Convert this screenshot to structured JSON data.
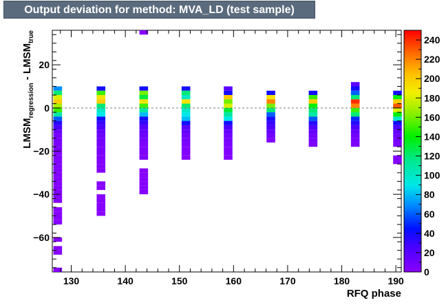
{
  "title": "Output deviation for method: MVA_LD (test sample)",
  "chart_data": {
    "type": "heatmap",
    "title": "Output deviation for method: MVA_LD (test sample)",
    "xlabel": "RFQ phase",
    "ylabel": {
      "main": "LMSM",
      "sub1": "regression",
      "mid": " - LMSM",
      "sub2": "true"
    },
    "xlim": [
      126.5,
      191
    ],
    "ylim": [
      -76,
      36
    ],
    "zlim": [
      0,
      250
    ],
    "x_ticks": [
      130,
      140,
      150,
      160,
      170,
      180,
      190
    ],
    "x_tick_labels": [
      "130",
      "140",
      "150",
      "160",
      "170",
      "180",
      "190"
    ],
    "y_ticks": [
      -60,
      -40,
      -20,
      0,
      20
    ],
    "y_tick_labels": [
      "−60",
      "−40",
      "−20",
      "0",
      "20"
    ],
    "z_ticks": [
      0,
      20,
      40,
      60,
      80,
      100,
      120,
      140,
      160,
      180,
      200,
      220,
      240
    ],
    "z_tick_labels": [
      "0",
      "20",
      "40",
      "60",
      "80",
      "100",
      "120",
      "140",
      "160",
      "180",
      "200",
      "220",
      "240"
    ],
    "bin_width_x": 1.6,
    "bin_height_y": 2,
    "reference_line_y": 0,
    "columns": [
      {
        "x": 127.5,
        "cells": [
          [
            9,
            70
          ],
          [
            7,
            120
          ],
          [
            5,
            180
          ],
          [
            3,
            200
          ],
          [
            1,
            170
          ],
          [
            -1,
            150
          ],
          [
            -3,
            110
          ],
          [
            -5,
            60
          ],
          [
            -7,
            35
          ],
          [
            -9,
            25
          ],
          [
            -11,
            12
          ],
          [
            -13,
            8
          ],
          [
            -15,
            8
          ],
          [
            -17,
            6
          ],
          [
            -19,
            5
          ],
          [
            -21,
            4
          ],
          [
            -23,
            4
          ],
          [
            -25,
            4
          ],
          [
            -27,
            3
          ],
          [
            -29,
            3
          ],
          [
            -31,
            3
          ],
          [
            -33,
            3
          ],
          [
            -35,
            2
          ],
          [
            -37,
            2
          ],
          [
            -39,
            2
          ],
          [
            -41,
            2
          ],
          [
            -43,
            2
          ],
          [
            -47,
            1
          ],
          [
            -49,
            1
          ],
          [
            -51,
            1
          ],
          [
            -53,
            1
          ],
          [
            -61,
            1
          ],
          [
            -65,
            1
          ],
          [
            -67,
            1
          ],
          [
            -75,
            1
          ]
        ]
      },
      {
        "x": 135.5,
        "cells": [
          [
            9,
            40
          ],
          [
            7,
            150
          ],
          [
            5,
            190
          ],
          [
            3,
            200
          ],
          [
            1,
            120
          ],
          [
            -1,
            100
          ],
          [
            -3,
            90
          ],
          [
            -5,
            40
          ],
          [
            -7,
            30
          ],
          [
            -9,
            25
          ],
          [
            -11,
            15
          ],
          [
            -13,
            12
          ],
          [
            -15,
            10
          ],
          [
            -17,
            8
          ],
          [
            -19,
            6
          ],
          [
            -21,
            5
          ],
          [
            -23,
            4
          ],
          [
            -25,
            3
          ],
          [
            -27,
            3
          ],
          [
            -29,
            2
          ],
          [
            -35,
            1
          ],
          [
            -37,
            1
          ],
          [
            -41,
            1
          ],
          [
            -43,
            1
          ],
          [
            -45,
            1
          ],
          [
            -47,
            1
          ],
          [
            -49,
            1
          ]
        ]
      },
      {
        "x": 143.4,
        "cells": [
          [
            35,
            1
          ],
          [
            9,
            40
          ],
          [
            7,
            160
          ],
          [
            5,
            130
          ],
          [
            3,
            190
          ],
          [
            1,
            150
          ],
          [
            -1,
            110
          ],
          [
            -3,
            80
          ],
          [
            -5,
            40
          ],
          [
            -7,
            30
          ],
          [
            -9,
            20
          ],
          [
            -11,
            15
          ],
          [
            -13,
            12
          ],
          [
            -15,
            8
          ],
          [
            -17,
            6
          ],
          [
            -19,
            5
          ],
          [
            -21,
            4
          ],
          [
            -23,
            4
          ],
          [
            -29,
            2
          ],
          [
            -31,
            2
          ],
          [
            -33,
            2
          ],
          [
            -35,
            2
          ],
          [
            -37,
            2
          ],
          [
            -39,
            2
          ]
        ]
      },
      {
        "x": 151.2,
        "cells": [
          [
            9,
            40
          ],
          [
            7,
            120
          ],
          [
            5,
            100
          ],
          [
            3,
            190
          ],
          [
            1,
            120
          ],
          [
            -1,
            100
          ],
          [
            -3,
            90
          ],
          [
            -5,
            80
          ],
          [
            -7,
            40
          ],
          [
            -9,
            20
          ],
          [
            -11,
            15
          ],
          [
            -13,
            10
          ],
          [
            -15,
            8
          ],
          [
            -17,
            6
          ],
          [
            -19,
            4
          ],
          [
            -21,
            3
          ],
          [
            -23,
            2
          ]
        ]
      },
      {
        "x": 159.0,
        "cells": [
          [
            9,
            20
          ],
          [
            7,
            40
          ],
          [
            5,
            200
          ],
          [
            3,
            160
          ],
          [
            1,
            180
          ],
          [
            -1,
            130
          ],
          [
            -3,
            110
          ],
          [
            -5,
            90
          ],
          [
            -7,
            40
          ],
          [
            -9,
            25
          ],
          [
            -11,
            15
          ],
          [
            -13,
            10
          ],
          [
            -15,
            8
          ],
          [
            -17,
            6
          ],
          [
            -19,
            4
          ],
          [
            -21,
            3
          ],
          [
            -23,
            2
          ]
        ]
      },
      {
        "x": 166.9,
        "cells": [
          [
            7,
            40
          ],
          [
            5,
            190
          ],
          [
            3,
            220
          ],
          [
            1,
            160
          ],
          [
            -1,
            120
          ],
          [
            -3,
            60
          ],
          [
            -5,
            40
          ],
          [
            -7,
            30
          ],
          [
            -9,
            25
          ],
          [
            -11,
            15
          ],
          [
            -13,
            10
          ],
          [
            -15,
            5
          ]
        ]
      },
      {
        "x": 174.7,
        "cells": [
          [
            7,
            40
          ],
          [
            5,
            150
          ],
          [
            3,
            200
          ],
          [
            1,
            140
          ],
          [
            -1,
            120
          ],
          [
            -3,
            110
          ],
          [
            -5,
            60
          ],
          [
            -7,
            35
          ],
          [
            -9,
            25
          ],
          [
            -11,
            15
          ],
          [
            -13,
            10
          ],
          [
            -15,
            8
          ],
          [
            -17,
            5
          ]
        ]
      },
      {
        "x": 182.5,
        "cells": [
          [
            11,
            20
          ],
          [
            9,
            40
          ],
          [
            7,
            60
          ],
          [
            5,
            120
          ],
          [
            3,
            240
          ],
          [
            1,
            220
          ],
          [
            -1,
            150
          ],
          [
            -3,
            120
          ],
          [
            -5,
            50
          ],
          [
            -7,
            35
          ],
          [
            -9,
            25
          ],
          [
            -11,
            15
          ],
          [
            -13,
            10
          ],
          [
            -15,
            8
          ],
          [
            -17,
            5
          ]
        ]
      },
      {
        "x": 190.3,
        "cells": [
          [
            7,
            40
          ],
          [
            5,
            140
          ],
          [
            3,
            200
          ],
          [
            1,
            230
          ],
          [
            -1,
            180
          ],
          [
            -3,
            140
          ],
          [
            -5,
            100
          ],
          [
            -7,
            40
          ],
          [
            -9,
            25
          ],
          [
            -11,
            15
          ],
          [
            -13,
            12
          ],
          [
            -15,
            8
          ],
          [
            -17,
            6
          ],
          [
            -23,
            3
          ],
          [
            -25,
            2
          ]
        ]
      }
    ]
  }
}
